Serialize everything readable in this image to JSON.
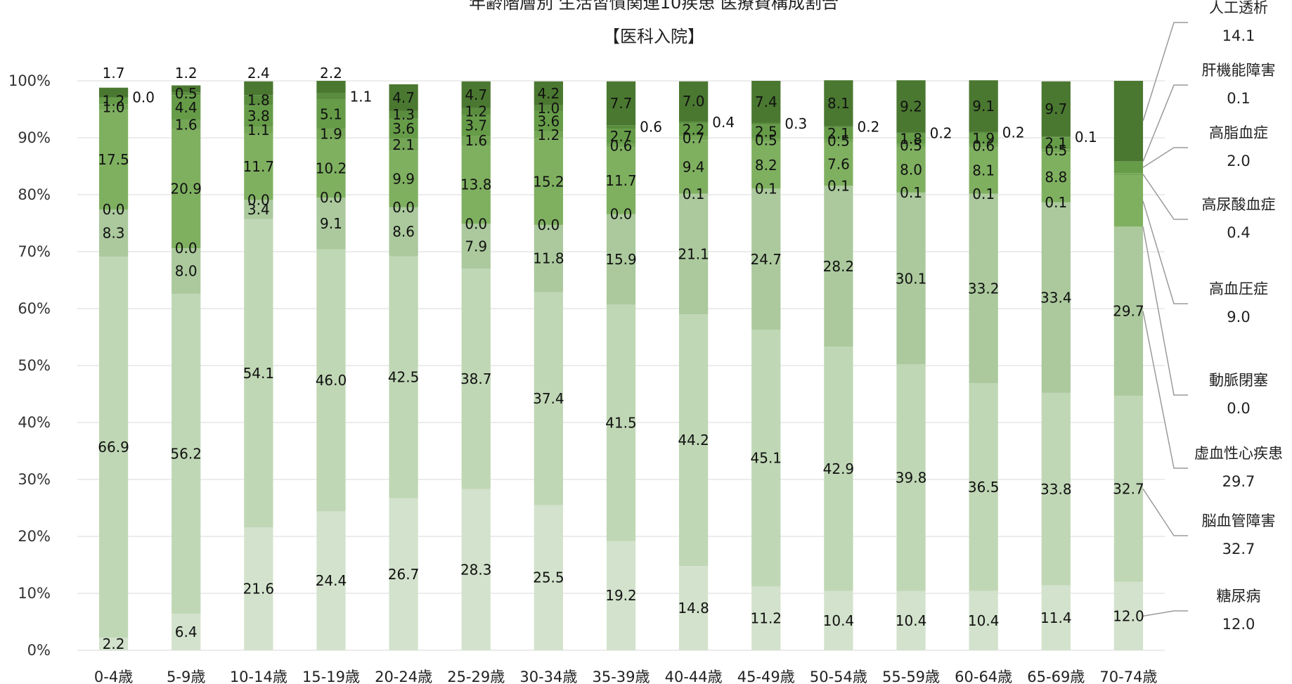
{
  "chart_data": {
    "type": "bar",
    "stacked": true,
    "title": "年齢階層別 生活習慣関連10疾患 医療費構成割合",
    "subtitle": "【医科入院】",
    "xlabel": "",
    "ylabel": "",
    "ylim": [
      0,
      100
    ],
    "yticks": [
      "0%",
      "10%",
      "20%",
      "30%",
      "40%",
      "50%",
      "60%",
      "70%",
      "80%",
      "90%",
      "100%"
    ],
    "grid": true,
    "legend_position": "right",
    "categories": [
      "0-4歳",
      "5-9歳",
      "10-14歳",
      "15-19歳",
      "20-24歳",
      "25-29歳",
      "30-34歳",
      "35-39歳",
      "40-44歳",
      "45-49歳",
      "50-54歳",
      "55-59歳",
      "60-64歳",
      "65-69歳",
      "70-74歳"
    ],
    "series": [
      {
        "name": "糖尿病",
        "color": "#d3e2cc",
        "values": [
          2.2,
          6.4,
          21.6,
          24.4,
          26.7,
          28.3,
          25.5,
          19.2,
          14.8,
          11.2,
          10.4,
          10.4,
          10.4,
          11.4,
          12.0
        ],
        "labels": [
          "2.2",
          "6.4",
          "21.6",
          "24.4",
          "26.7",
          "28.3",
          "25.5",
          "19.2",
          "14.8",
          "11.2",
          "10.4",
          "10.4",
          "10.4",
          "11.4",
          "12.0"
        ]
      },
      {
        "name": "脳血管障害",
        "color": "#c0d7b5",
        "values": [
          66.9,
          56.2,
          54.1,
          46.0,
          42.5,
          38.7,
          37.4,
          41.5,
          44.2,
          45.1,
          42.9,
          39.8,
          36.5,
          33.8,
          32.7
        ],
        "labels": [
          "66.9",
          "56.2",
          "54.1",
          "46.0",
          "42.5",
          "38.7",
          "37.4",
          "41.5",
          "44.2",
          "45.1",
          "42.9",
          "39.8",
          "36.5",
          "33.8",
          "32.7"
        ]
      },
      {
        "name": "虚血性心疾患",
        "color": "#abc99d",
        "values": [
          8.3,
          8.0,
          3.4,
          9.1,
          8.6,
          7.9,
          11.8,
          15.9,
          21.1,
          24.7,
          28.2,
          30.1,
          33.2,
          33.4,
          29.7
        ],
        "labels": [
          "8.3",
          "8.0",
          "3.4",
          "9.1",
          "8.6",
          "7.9",
          "11.8",
          "15.9",
          "21.1",
          "24.7",
          "28.2",
          "30.1",
          "33.2",
          "33.4",
          "29.7"
        ]
      },
      {
        "name": "動脈閉塞",
        "color": "#9abf88",
        "values": [
          0.0,
          0.0,
          0.0,
          0.0,
          0.0,
          0.0,
          0.0,
          0.0,
          0.1,
          0.1,
          0.1,
          0.1,
          0.1,
          0.1,
          0.0
        ],
        "labels": [
          "0.0",
          "0.0",
          "0.0",
          "0.0",
          "0.0",
          "0.0",
          "0.0",
          "0.0",
          "0.1",
          "0.1",
          "0.1",
          "0.1",
          "0.1",
          "0.1",
          ""
        ]
      },
      {
        "name": "高血圧症",
        "color": "#7fb060",
        "values": [
          17.5,
          20.9,
          11.7,
          10.2,
          9.9,
          13.8,
          15.2,
          11.7,
          9.4,
          8.2,
          7.6,
          8.0,
          8.1,
          8.8,
          9.0
        ],
        "labels": [
          "17.5",
          "20.9",
          "11.7",
          "10.2",
          "9.9",
          "13.8",
          "15.2",
          "11.7",
          "9.4",
          "8.2",
          "7.6",
          "8.0",
          "8.1",
          "8.8",
          ""
        ]
      },
      {
        "name": "高尿酸血症",
        "color": "#74a656",
        "values": [
          1.0,
          1.6,
          1.1,
          1.9,
          2.1,
          1.6,
          1.2,
          0.6,
          0.7,
          0.5,
          0.5,
          0.5,
          0.6,
          0.5,
          0.4
        ],
        "labels": [
          "1.0",
          "1.6",
          "1.1",
          "1.9",
          "2.1",
          "1.6",
          "1.2",
          "0.6",
          "0.7",
          "0.5",
          "0.5",
          "0.5",
          "0.6",
          "0.5",
          ""
        ]
      },
      {
        "name": "高脂血症",
        "color": "#669c48",
        "values": [
          1.2,
          4.4,
          3.8,
          5.1,
          3.6,
          3.7,
          3.6,
          2.7,
          2.2,
          2.5,
          2.1,
          1.8,
          1.9,
          2.1,
          2.0
        ],
        "labels": [
          "1.2",
          "4.4",
          "3.8",
          "5.1",
          "3.6",
          "3.7",
          "3.6",
          "2.7",
          "2.2",
          "2.5",
          "2.1",
          "1.8",
          "1.9",
          "2.1",
          ""
        ]
      },
      {
        "name": "肝機能障害",
        "color": "#5a8d3e",
        "values": [
          0.0,
          0.5,
          1.8,
          1.1,
          1.3,
          1.2,
          1.0,
          0.6,
          0.4,
          0.3,
          0.2,
          0.2,
          0.2,
          0.1,
          0.1
        ],
        "labels": [
          "0.0",
          "0.5",
          "1.8",
          "1.1",
          "1.3",
          "1.2",
          "1.0",
          "0.6",
          "0.4",
          "0.3",
          "0.2",
          "0.2",
          "0.2",
          "0.1",
          ""
        ]
      },
      {
        "name": "人工透析",
        "color": "#4a7830",
        "values": [
          1.7,
          1.2,
          2.4,
          2.2,
          4.7,
          4.7,
          4.2,
          7.7,
          7.0,
          7.4,
          8.1,
          9.2,
          9.1,
          9.7,
          14.1
        ],
        "labels": [
          "1.7",
          "1.2",
          "2.4",
          "2.2",
          "4.7",
          "4.7",
          "4.2",
          "7.7",
          "7.0",
          "7.4",
          "8.1",
          "9.2",
          "9.1",
          "9.7",
          ""
        ]
      }
    ],
    "right_legend_values": {
      "人工透析": "14.1",
      "肝機能障害": "0.1",
      "高脂血症": "2.0",
      "高尿酸血症": "0.4",
      "高血圧症": "9.0",
      "動脈閉塞": "0.0",
      "虚血性心疾患": "29.7",
      "脳血管障害": "32.7",
      "糖尿病": "12.0"
    }
  }
}
